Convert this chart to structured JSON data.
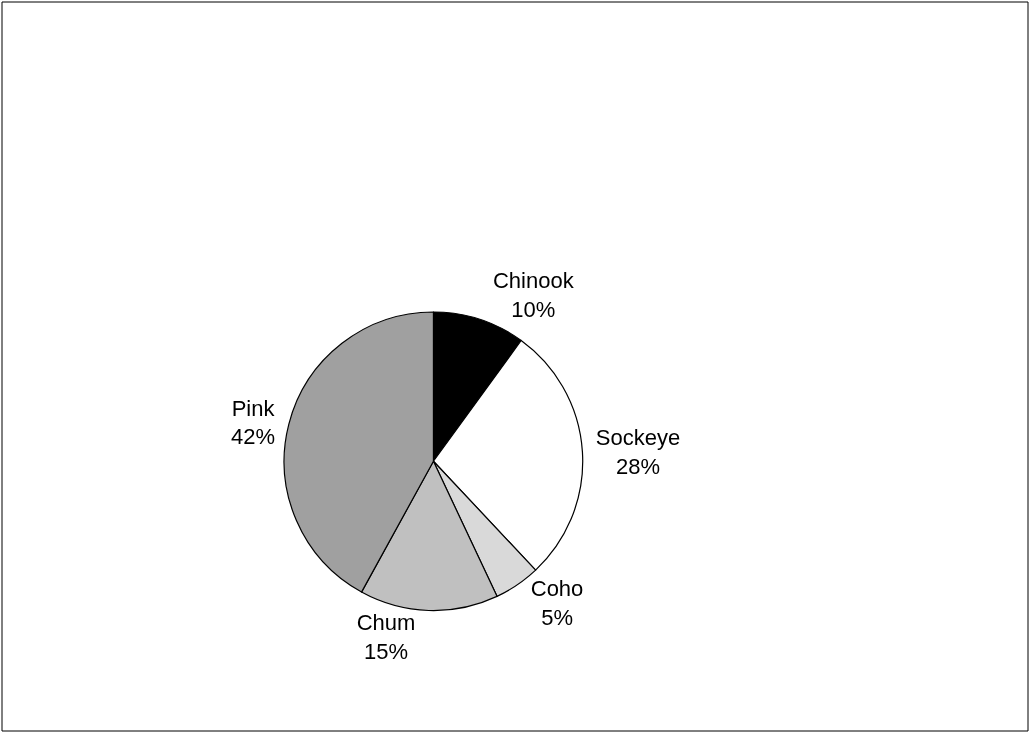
{
  "chart_data": {
    "type": "pie",
    "categories": [
      "Chinook",
      "Sockeye",
      "Coho",
      "Chum",
      "Pink"
    ],
    "values": [
      10,
      28,
      5,
      15,
      42
    ],
    "value_labels": [
      "10%",
      "28%",
      "5%",
      "15%",
      "42%"
    ],
    "colors": [
      "#000000",
      "#ffffff",
      "#d9d9d9",
      "#c0c0c0",
      "#a0a0a0"
    ],
    "legend": false
  }
}
